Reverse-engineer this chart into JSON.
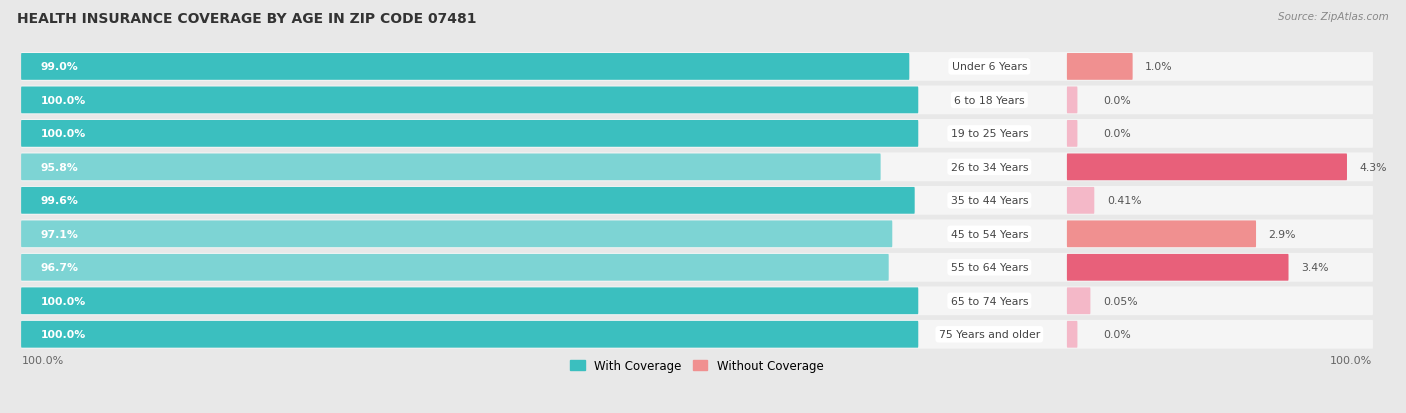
{
  "title": "HEALTH INSURANCE COVERAGE BY AGE IN ZIP CODE 07481",
  "source": "Source: ZipAtlas.com",
  "categories": [
    "Under 6 Years",
    "6 to 18 Years",
    "19 to 25 Years",
    "26 to 34 Years",
    "35 to 44 Years",
    "45 to 54 Years",
    "55 to 64 Years",
    "65 to 74 Years",
    "75 Years and older"
  ],
  "with_coverage": [
    99.0,
    100.0,
    100.0,
    95.8,
    99.6,
    97.1,
    96.7,
    100.0,
    100.0
  ],
  "without_coverage": [
    1.0,
    0.0,
    0.0,
    4.3,
    0.41,
    2.9,
    3.4,
    0.05,
    0.0
  ],
  "with_coverage_labels": [
    "99.0%",
    "100.0%",
    "100.0%",
    "95.8%",
    "99.6%",
    "97.1%",
    "96.7%",
    "100.0%",
    "100.0%"
  ],
  "without_coverage_labels": [
    "1.0%",
    "0.0%",
    "0.0%",
    "4.3%",
    "0.41%",
    "2.9%",
    "3.4%",
    "0.05%",
    "0.0%"
  ],
  "color_with_dark": "#3BBFBF",
  "color_with_light": "#7DD4D4",
  "color_without_dark": "#E8607A",
  "color_without_mid": "#F09090",
  "color_without_light": "#F4B8C8",
  "bg_color": "#e8e8e8",
  "row_bg": "#f5f5f5",
  "legend_with": "With Coverage",
  "legend_without": "Without Coverage",
  "left_axis_label": "100.0%",
  "right_axis_label": "100.0%"
}
